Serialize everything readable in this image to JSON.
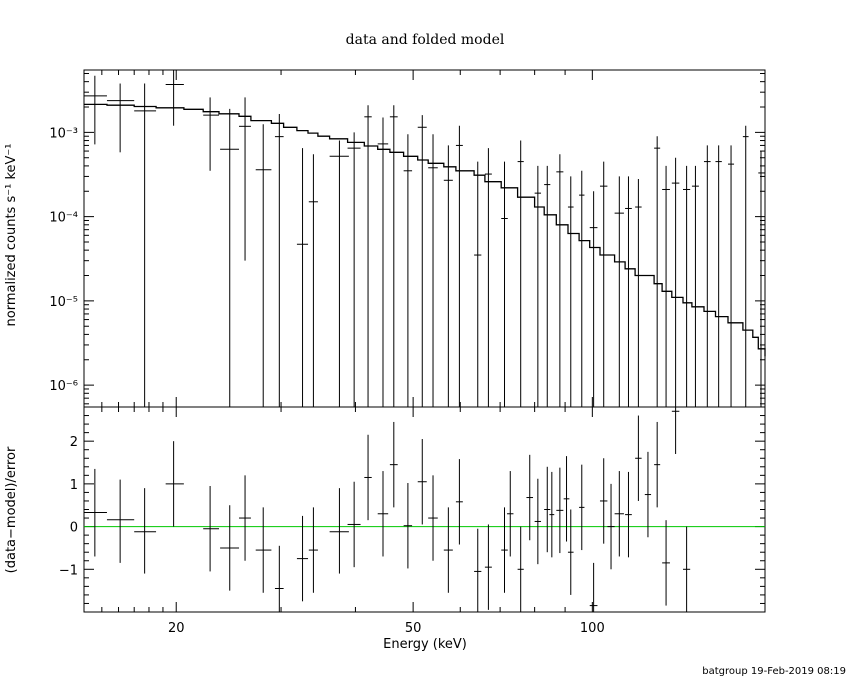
{
  "title": "data and folded model",
  "footer": "batgroup 19-Feb-2019 08:19",
  "chart_data": [
    {
      "type": "scatter",
      "panel": "top",
      "ylabel": "normalized counts s⁻¹ keV⁻¹",
      "yscale": "log",
      "xscale": "log",
      "xlim": [
        14,
        195
      ],
      "ylim": [
        5.5e-07,
        0.0055
      ],
      "y_ticks": [
        {
          "value": 0.001,
          "label": "10⁻³"
        },
        {
          "value": 0.0001,
          "label": "10⁻⁴"
        },
        {
          "value": 1e-05,
          "label": "10⁻⁵"
        },
        {
          "value": 1e-06,
          "label": "10⁻⁶"
        }
      ],
      "data_points": [
        {
          "x": 14.6,
          "xlo": 14.0,
          "xhi": 15.3,
          "y": 0.00271,
          "ylo": 0.00072,
          "yhi": 0.0047
        },
        {
          "x": 16.1,
          "xlo": 15.3,
          "xhi": 17.0,
          "y": 0.00238,
          "ylo": 0.00058,
          "yhi": 0.0038
        },
        {
          "x": 17.7,
          "xlo": 17.0,
          "xhi": 18.5,
          "y": 0.0018,
          "ylo": 5.5e-07,
          "yhi": 0.0038
        },
        {
          "x": 19.8,
          "xlo": 19.2,
          "xhi": 20.6,
          "y": 0.0037,
          "ylo": 0.0012,
          "yhi": 0.0055
        },
        {
          "x": 22.8,
          "xlo": 22.2,
          "xhi": 23.6,
          "y": 0.0016,
          "ylo": 0.00035,
          "yhi": 0.0026
        },
        {
          "x": 24.6,
          "xlo": 23.7,
          "xhi": 25.5,
          "y": 0.00063,
          "ylo": 5.5e-07,
          "yhi": 0.0019
        },
        {
          "x": 26.1,
          "xlo": 25.5,
          "xhi": 26.7,
          "y": 0.00118,
          "ylo": 3e-05,
          "yhi": 0.0026
        },
        {
          "x": 28.0,
          "xlo": 27.2,
          "xhi": 28.9,
          "y": 0.00036,
          "ylo": 5.5e-07,
          "yhi": 0.00125
        },
        {
          "x": 29.8,
          "xlo": 29.3,
          "xhi": 30.3,
          "y": 0.00089,
          "ylo": 5.5e-07,
          "yhi": 0.00165
        },
        {
          "x": 32.6,
          "xlo": 31.9,
          "xhi": 33.3,
          "y": 4.7e-05,
          "ylo": 5.5e-07,
          "yhi": 0.00065
        },
        {
          "x": 34.0,
          "xlo": 33.4,
          "xhi": 34.6,
          "y": 0.00015,
          "ylo": 5.5e-07,
          "yhi": 0.00055
        },
        {
          "x": 37.6,
          "xlo": 36.2,
          "xhi": 39.0,
          "y": 0.00052,
          "ylo": 5.5e-07,
          "yhi": 0.0008
        },
        {
          "x": 39.8,
          "xlo": 38.8,
          "xhi": 40.8,
          "y": 0.00065,
          "ylo": 5.5e-07,
          "yhi": 0.001
        },
        {
          "x": 42.0,
          "xlo": 41.4,
          "xhi": 42.6,
          "y": 0.00153,
          "ylo": 5.5e-07,
          "yhi": 0.0021
        },
        {
          "x": 44.5,
          "xlo": 43.6,
          "xhi": 45.4,
          "y": 0.00073,
          "ylo": 5.5e-07,
          "yhi": 0.0015
        },
        {
          "x": 46.4,
          "xlo": 45.7,
          "xhi": 47.1,
          "y": 0.00153,
          "ylo": 5.5e-07,
          "yhi": 0.0021
        },
        {
          "x": 49.0,
          "xlo": 48.2,
          "xhi": 49.8,
          "y": 0.00035,
          "ylo": 5.5e-07,
          "yhi": 0.00095
        },
        {
          "x": 51.8,
          "xlo": 50.9,
          "xhi": 52.7,
          "y": 0.00115,
          "ylo": 5.5e-07,
          "yhi": 0.0016
        },
        {
          "x": 54.0,
          "xlo": 53.0,
          "xhi": 55.0,
          "y": 0.00038,
          "ylo": 5.5e-07,
          "yhi": 0.00095
        },
        {
          "x": 57.3,
          "xlo": 56.3,
          "xhi": 58.3,
          "y": 0.00027,
          "ylo": 5.5e-07,
          "yhi": 0.0007
        },
        {
          "x": 59.8,
          "xlo": 59.0,
          "xhi": 60.6,
          "y": 0.0007,
          "ylo": 5.5e-07,
          "yhi": 0.0012
        },
        {
          "x": 64.2,
          "xlo": 63.3,
          "xhi": 65.1,
          "y": 3.5e-05,
          "ylo": 5.5e-07,
          "yhi": 0.00045
        },
        {
          "x": 66.9,
          "xlo": 66.0,
          "xhi": 67.8,
          "y": 0.00032,
          "ylo": 5.5e-07,
          "yhi": 0.00065
        },
        {
          "x": 71.2,
          "xlo": 70.3,
          "xhi": 72.1,
          "y": 9.5e-05,
          "ylo": 5.5e-07,
          "yhi": 0.00045
        },
        {
          "x": 75.8,
          "xlo": 74.9,
          "xhi": 76.7,
          "y": 0.00045,
          "ylo": 5.5e-07,
          "yhi": 0.0008
        },
        {
          "x": 81.0,
          "xlo": 80.0,
          "xhi": 82.0,
          "y": 0.00019,
          "ylo": 5.5e-07,
          "yhi": 0.0004
        },
        {
          "x": 84.0,
          "xlo": 83.0,
          "xhi": 85.0,
          "y": 0.00024,
          "ylo": 5.5e-07,
          "yhi": 0.0004
        },
        {
          "x": 88.2,
          "xlo": 87.0,
          "xhi": 89.4,
          "y": 0.00034,
          "ylo": 5.5e-07,
          "yhi": 0.00055
        },
        {
          "x": 92.0,
          "xlo": 91.0,
          "xhi": 93.0,
          "y": 0.00013,
          "ylo": 5.5e-07,
          "yhi": 0.0003
        },
        {
          "x": 96.0,
          "xlo": 95.0,
          "xhi": 97.0,
          "y": 0.00018,
          "ylo": 5.5e-07,
          "yhi": 0.00035
        },
        {
          "x": 100.5,
          "xlo": 99.0,
          "xhi": 102.0,
          "y": 7.4e-05,
          "ylo": 5.5e-07,
          "yhi": 0.0002
        },
        {
          "x": 104.5,
          "xlo": 103.0,
          "xhi": 106.0,
          "y": 0.00023,
          "ylo": 5.5e-07,
          "yhi": 0.00045
        },
        {
          "x": 111.0,
          "xlo": 109.0,
          "xhi": 113.0,
          "y": 0.00011,
          "ylo": 5.5e-07,
          "yhi": 0.0003
        },
        {
          "x": 115.0,
          "xlo": 113.5,
          "xhi": 116.5,
          "y": 0.000125,
          "ylo": 5.5e-07,
          "yhi": 0.0003
        },
        {
          "x": 119.5,
          "xlo": 118.0,
          "xhi": 121.0,
          "y": 0.00013,
          "ylo": 5.5e-07,
          "yhi": 0.00028
        },
        {
          "x": 128.5,
          "xlo": 127.0,
          "xhi": 130.0,
          "y": 0.00065,
          "ylo": 5.5e-07,
          "yhi": 0.0009
        },
        {
          "x": 133.0,
          "xlo": 131.0,
          "xhi": 135.0,
          "y": 0.00021,
          "ylo": 5.5e-07,
          "yhi": 0.0004
        },
        {
          "x": 138.0,
          "xlo": 136.0,
          "xhi": 140.0,
          "y": 0.00025,
          "ylo": 5.5e-07,
          "yhi": 0.0005
        },
        {
          "x": 144.0,
          "xlo": 142.0,
          "xhi": 146.0,
          "y": 0.00021,
          "ylo": 5.5e-07,
          "yhi": 0.0004
        },
        {
          "x": 149.0,
          "xlo": 147.0,
          "xhi": 151.0,
          "y": 0.00023,
          "ylo": 5.5e-07,
          "yhi": 0.0004
        },
        {
          "x": 156.0,
          "xlo": 154.0,
          "xhi": 158.0,
          "y": 0.00045,
          "ylo": 5.5e-07,
          "yhi": 0.0007
        },
        {
          "x": 163.0,
          "xlo": 161.0,
          "xhi": 165.0,
          "y": 0.00045,
          "ylo": 5.5e-07,
          "yhi": 0.0007
        },
        {
          "x": 171.0,
          "xlo": 169.0,
          "xhi": 173.0,
          "y": 0.00042,
          "ylo": 5.5e-07,
          "yhi": 0.0007
        },
        {
          "x": 181.0,
          "xlo": 179.0,
          "xhi": 183.0,
          "y": 0.00089,
          "ylo": 5.5e-07,
          "yhi": 0.0012
        },
        {
          "x": 192.0,
          "xlo": 190.0,
          "xhi": 195.0,
          "y": 0.00033,
          "ylo": 5.5e-07,
          "yhi": 0.0006
        }
      ],
      "model_step": [
        {
          "x": 14.0,
          "y": 0.00215
        },
        {
          "x": 15.3,
          "y": 0.0021
        },
        {
          "x": 17.0,
          "y": 0.00203
        },
        {
          "x": 18.5,
          "y": 0.00196
        },
        {
          "x": 20.6,
          "y": 0.00188
        },
        {
          "x": 22.2,
          "y": 0.00176
        },
        {
          "x": 23.6,
          "y": 0.00166
        },
        {
          "x": 25.5,
          "y": 0.00155
        },
        {
          "x": 26.7,
          "y": 0.00138
        },
        {
          "x": 28.9,
          "y": 0.00128
        },
        {
          "x": 30.3,
          "y": 0.00115
        },
        {
          "x": 31.9,
          "y": 0.00105
        },
        {
          "x": 33.3,
          "y": 0.00098
        },
        {
          "x": 34.6,
          "y": 0.0009
        },
        {
          "x": 36.2,
          "y": 0.00084
        },
        {
          "x": 38.8,
          "y": 0.00076
        },
        {
          "x": 41.4,
          "y": 0.00069
        },
        {
          "x": 43.6,
          "y": 0.00063
        },
        {
          "x": 45.7,
          "y": 0.00058
        },
        {
          "x": 48.2,
          "y": 0.00052
        },
        {
          "x": 50.9,
          "y": 0.00047
        },
        {
          "x": 53.0,
          "y": 0.00043
        },
        {
          "x": 56.3,
          "y": 0.00039
        },
        {
          "x": 59.0,
          "y": 0.00035
        },
        {
          "x": 63.3,
          "y": 0.00031
        },
        {
          "x": 66.0,
          "y": 0.00026
        },
        {
          "x": 70.3,
          "y": 0.00022
        },
        {
          "x": 74.9,
          "y": 0.00017
        },
        {
          "x": 80.0,
          "y": 0.00013
        },
        {
          "x": 83.0,
          "y": 0.000105
        },
        {
          "x": 87.0,
          "y": 8e-05
        },
        {
          "x": 91.0,
          "y": 6.3e-05
        },
        {
          "x": 95.0,
          "y": 5.2e-05
        },
        {
          "x": 99.0,
          "y": 4.3e-05
        },
        {
          "x": 103.0,
          "y": 3.5e-05
        },
        {
          "x": 109.0,
          "y": 2.9e-05
        },
        {
          "x": 113.5,
          "y": 2.4e-05
        },
        {
          "x": 118.0,
          "y": 2e-05
        },
        {
          "x": 127.0,
          "y": 1.6e-05
        },
        {
          "x": 131.0,
          "y": 1.3e-05
        },
        {
          "x": 136.0,
          "y": 1.1e-05
        },
        {
          "x": 142.0,
          "y": 9.5e-06
        },
        {
          "x": 147.0,
          "y": 8.5e-06
        },
        {
          "x": 154.0,
          "y": 7.5e-06
        },
        {
          "x": 161.0,
          "y": 6.5e-06
        },
        {
          "x": 169.0,
          "y": 5.5e-06
        },
        {
          "x": 179.0,
          "y": 4.5e-06
        },
        {
          "x": 186.0,
          "y": 3.7e-06
        },
        {
          "x": 190.0,
          "y": 2.7e-06
        },
        {
          "x": 195.0,
          "y": 2.2e-06
        }
      ]
    },
    {
      "type": "scatter",
      "panel": "bottom",
      "ylabel": "(data−model)/error",
      "xlabel": "Energy (keV)",
      "xscale": "log",
      "xlim": [
        14,
        195
      ],
      "ylim": [
        -2.0,
        2.8
      ],
      "y_ticks": [
        {
          "value": 2,
          "label": "2"
        },
        {
          "value": 1,
          "label": "1"
        },
        {
          "value": 0,
          "label": "0"
        },
        {
          "value": -1,
          "label": "−1"
        }
      ],
      "x_ticks": [
        {
          "value": 20,
          "label": "20"
        },
        {
          "value": 50,
          "label": "50"
        },
        {
          "value": 100,
          "label": "100"
        }
      ],
      "reference_line": {
        "y": 0,
        "color": "#00c800"
      },
      "data_points": [
        {
          "x": 14.6,
          "xlo": 14.0,
          "xhi": 15.3,
          "y": 0.33,
          "ylo": -0.7,
          "yhi": 1.35
        },
        {
          "x": 16.1,
          "xlo": 15.3,
          "xhi": 17.0,
          "y": 0.16,
          "ylo": -0.85,
          "yhi": 1.1
        },
        {
          "x": 17.7,
          "xlo": 17.0,
          "xhi": 18.5,
          "y": -0.12,
          "ylo": -1.1,
          "yhi": 0.9
        },
        {
          "x": 19.8,
          "xlo": 19.2,
          "xhi": 20.6,
          "y": 1.0,
          "ylo": 0.0,
          "yhi": 2.0
        },
        {
          "x": 22.8,
          "xlo": 22.2,
          "xhi": 23.6,
          "y": -0.05,
          "ylo": -1.05,
          "yhi": 0.95
        },
        {
          "x": 24.6,
          "xlo": 23.7,
          "xhi": 25.5,
          "y": -0.5,
          "ylo": -1.5,
          "yhi": 0.5
        },
        {
          "x": 26.1,
          "xlo": 25.5,
          "xhi": 26.7,
          "y": 0.2,
          "ylo": -0.8,
          "yhi": 1.2
        },
        {
          "x": 28.0,
          "xlo": 27.2,
          "xhi": 28.9,
          "y": -0.55,
          "ylo": -1.55,
          "yhi": 0.45
        },
        {
          "x": 29.8,
          "xlo": 29.3,
          "xhi": 30.3,
          "y": -1.45,
          "ylo": -2.0,
          "yhi": -0.45
        },
        {
          "x": 32.6,
          "xlo": 31.9,
          "xhi": 33.3,
          "y": -0.75,
          "ylo": -1.75,
          "yhi": 0.25
        },
        {
          "x": 34.0,
          "xlo": 33.4,
          "xhi": 34.6,
          "y": -0.55,
          "ylo": -1.55,
          "yhi": 0.45
        },
        {
          "x": 37.6,
          "xlo": 36.2,
          "xhi": 39.0,
          "y": -0.12,
          "ylo": -1.1,
          "yhi": 0.9
        },
        {
          "x": 39.8,
          "xlo": 38.8,
          "xhi": 40.8,
          "y": 0.05,
          "ylo": -0.95,
          "yhi": 1.05
        },
        {
          "x": 42.0,
          "xlo": 41.4,
          "xhi": 42.6,
          "y": 1.15,
          "ylo": 0.15,
          "yhi": 2.15
        },
        {
          "x": 44.5,
          "xlo": 43.6,
          "xhi": 45.4,
          "y": 0.3,
          "ylo": -0.7,
          "yhi": 1.3
        },
        {
          "x": 46.4,
          "xlo": 45.7,
          "xhi": 47.1,
          "y": 1.45,
          "ylo": 0.45,
          "yhi": 2.45
        },
        {
          "x": 49.0,
          "xlo": 48.2,
          "xhi": 49.8,
          "y": 0.02,
          "ylo": -0.98,
          "yhi": 1.02
        },
        {
          "x": 51.8,
          "xlo": 50.9,
          "xhi": 52.7,
          "y": 1.05,
          "ylo": 0.05,
          "yhi": 2.05
        },
        {
          "x": 54.0,
          "xlo": 53.0,
          "xhi": 55.0,
          "y": 0.2,
          "ylo": -0.8,
          "yhi": 1.2
        },
        {
          "x": 57.3,
          "xlo": 56.3,
          "xhi": 58.3,
          "y": -0.55,
          "ylo": -1.55,
          "yhi": 0.45
        },
        {
          "x": 59.8,
          "xlo": 59.0,
          "xhi": 60.6,
          "y": 0.58,
          "ylo": -0.42,
          "yhi": 1.58
        },
        {
          "x": 64.2,
          "xlo": 63.3,
          "xhi": 65.1,
          "y": -1.05,
          "ylo": -2.0,
          "yhi": -0.05
        },
        {
          "x": 66.9,
          "xlo": 66.0,
          "xhi": 67.8,
          "y": -0.95,
          "ylo": -1.95,
          "yhi": 0.05
        },
        {
          "x": 71.2,
          "xlo": 70.3,
          "xhi": 72.1,
          "y": -0.55,
          "ylo": -1.55,
          "yhi": 0.45
        },
        {
          "x": 72.8,
          "xlo": 71.9,
          "xhi": 73.7,
          "y": 0.3,
          "ylo": -0.7,
          "yhi": 1.3
        },
        {
          "x": 75.8,
          "xlo": 74.9,
          "xhi": 76.7,
          "y": -1.0,
          "ylo": -2.0,
          "yhi": 0.0
        },
        {
          "x": 78.5,
          "xlo": 77.5,
          "xhi": 79.5,
          "y": 0.68,
          "ylo": -0.32,
          "yhi": 1.68
        },
        {
          "x": 81.0,
          "xlo": 80.0,
          "xhi": 82.0,
          "y": 0.12,
          "ylo": -0.88,
          "yhi": 1.12
        },
        {
          "x": 84.0,
          "xlo": 83.0,
          "xhi": 85.0,
          "y": 0.4,
          "ylo": -0.6,
          "yhi": 1.4
        },
        {
          "x": 85.5,
          "xlo": 84.7,
          "xhi": 86.3,
          "y": 0.28,
          "ylo": -0.72,
          "yhi": 1.28
        },
        {
          "x": 88.2,
          "xlo": 87.0,
          "xhi": 89.4,
          "y": 0.38,
          "ylo": -0.62,
          "yhi": 1.38
        },
        {
          "x": 90.5,
          "xlo": 89.5,
          "xhi": 91.5,
          "y": 0.65,
          "ylo": -0.35,
          "yhi": 1.65
        },
        {
          "x": 92.0,
          "xlo": 91.0,
          "xhi": 93.0,
          "y": -0.6,
          "ylo": -1.6,
          "yhi": 0.4
        },
        {
          "x": 96.0,
          "xlo": 95.0,
          "xhi": 97.0,
          "y": 0.45,
          "ylo": -0.55,
          "yhi": 1.45
        },
        {
          "x": 100.5,
          "xlo": 99.0,
          "xhi": 102.0,
          "y": -1.85,
          "ylo": -2.0,
          "yhi": -0.85
        },
        {
          "x": 104.5,
          "xlo": 103.0,
          "xhi": 106.0,
          "y": 0.6,
          "ylo": -0.4,
          "yhi": 1.6
        },
        {
          "x": 107.5,
          "xlo": 106.0,
          "xhi": 109.0,
          "y": 0.0,
          "ylo": -1.0,
          "yhi": 1.0
        },
        {
          "x": 111.0,
          "xlo": 109.0,
          "xhi": 113.0,
          "y": 0.3,
          "ylo": -0.7,
          "yhi": 1.3
        },
        {
          "x": 115.0,
          "xlo": 113.5,
          "xhi": 116.5,
          "y": 0.28,
          "ylo": -0.72,
          "yhi": 1.28
        },
        {
          "x": 119.5,
          "xlo": 118.0,
          "xhi": 121.0,
          "y": 1.6,
          "ylo": 0.6,
          "yhi": 2.6
        },
        {
          "x": 124.0,
          "xlo": 122.5,
          "xhi": 125.5,
          "y": 0.75,
          "ylo": -0.25,
          "yhi": 1.75
        },
        {
          "x": 128.5,
          "xlo": 127.0,
          "xhi": 130.0,
          "y": 1.45,
          "ylo": 0.45,
          "yhi": 2.45
        },
        {
          "x": 133.0,
          "xlo": 131.0,
          "xhi": 135.0,
          "y": -0.85,
          "ylo": -1.85,
          "yhi": 0.15
        },
        {
          "x": 138.0,
          "xlo": 136.0,
          "xhi": 140.0,
          "y": 2.7,
          "ylo": 1.7,
          "yhi": 3.0
        },
        {
          "x": 144.0,
          "xlo": 142.0,
          "xhi": 146.0,
          "y": -1.0,
          "ylo": -2.0,
          "yhi": 0.0
        }
      ]
    }
  ]
}
